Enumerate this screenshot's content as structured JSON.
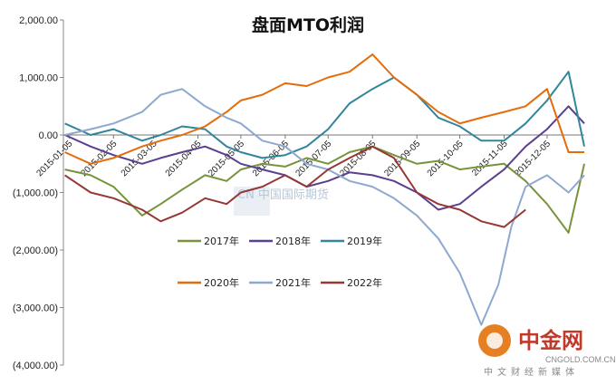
{
  "chart_data": {
    "type": "line",
    "title": "盘面MTO利润",
    "ylim": [
      -4000,
      2000
    ],
    "yticks": [
      2000,
      1000,
      0,
      -1000,
      -2000,
      -3000,
      -4000
    ],
    "ytick_labels": [
      "2,000.00",
      "1,000.00",
      "0.00",
      "(1,000.00)",
      "(2,000.00)",
      "(3,000.00)",
      "(4,000.00)"
    ],
    "x_range": [
      "2015-01-01",
      "2015-12-31"
    ],
    "x_tick_dates": [
      "2015-01-05",
      "2015-02-05",
      "2015-03-05",
      "2015-04-05",
      "2015-05-05",
      "2015-06-05",
      "2015-07-05",
      "2015-08-05",
      "2015-09-05",
      "2015-10-05",
      "2015-11-05",
      "2015-12-05"
    ],
    "x_tick_labels": [
      "2015-01-05",
      "2015-02-05",
      "2015-03-05",
      "2015-04-05",
      "2015-05-05",
      "2015-06-05",
      "2015-07-05",
      "2015-08-05",
      "2015-09-05",
      "2015-10-05",
      "2015-11-05",
      "2015-12-05"
    ],
    "legend_placement": "center",
    "grid": false,
    "series": [
      {
        "name": "2017年",
        "color": "#77933c",
        "x": [
          "2015-01-02",
          "2015-01-20",
          "2015-02-05",
          "2015-02-25",
          "2015-03-10",
          "2015-03-25",
          "2015-04-10",
          "2015-04-25",
          "2015-05-05",
          "2015-05-20",
          "2015-06-05",
          "2015-06-20",
          "2015-07-05",
          "2015-07-20",
          "2015-08-05",
          "2015-08-20",
          "2015-09-05",
          "2015-09-20",
          "2015-10-05",
          "2015-10-20",
          "2015-11-05",
          "2015-11-20",
          "2015-12-05",
          "2015-12-20",
          "2015-12-31"
        ],
        "values": [
          -600,
          -700,
          -900,
          -1400,
          -1200,
          -950,
          -700,
          -800,
          -600,
          -500,
          -550,
          -400,
          -500,
          -300,
          -200,
          -350,
          -500,
          -450,
          -600,
          -550,
          -500,
          -800,
          -1200,
          -1700,
          -500
        ]
      },
      {
        "name": "2018年",
        "color": "#5c3f8f",
        "x": [
          "2015-01-02",
          "2015-01-20",
          "2015-02-05",
          "2015-02-25",
          "2015-03-10",
          "2015-03-25",
          "2015-04-10",
          "2015-04-25",
          "2015-05-05",
          "2015-05-20",
          "2015-06-05",
          "2015-06-20",
          "2015-07-05",
          "2015-07-20",
          "2015-08-05",
          "2015-08-20",
          "2015-09-05",
          "2015-09-20",
          "2015-10-05",
          "2015-10-20",
          "2015-11-05",
          "2015-11-20",
          "2015-12-05",
          "2015-12-20",
          "2015-12-31"
        ],
        "values": [
          0,
          -200,
          -350,
          -500,
          -400,
          -300,
          -200,
          -350,
          -500,
          -600,
          -700,
          -900,
          -800,
          -650,
          -700,
          -800,
          -1000,
          -1300,
          -1200,
          -900,
          -600,
          -200,
          100,
          500,
          200
        ]
      },
      {
        "name": "2019年",
        "color": "#31859c",
        "x": [
          "2015-01-02",
          "2015-01-20",
          "2015-02-05",
          "2015-02-25",
          "2015-03-10",
          "2015-03-25",
          "2015-04-10",
          "2015-04-25",
          "2015-05-05",
          "2015-05-20",
          "2015-06-05",
          "2015-06-20",
          "2015-07-05",
          "2015-07-20",
          "2015-08-05",
          "2015-08-20",
          "2015-09-05",
          "2015-09-20",
          "2015-10-05",
          "2015-10-20",
          "2015-11-05",
          "2015-11-20",
          "2015-12-05",
          "2015-12-20",
          "2015-12-31"
        ],
        "values": [
          200,
          0,
          100,
          -100,
          0,
          150,
          100,
          -200,
          -300,
          -400,
          -350,
          -200,
          100,
          550,
          800,
          1000,
          700,
          300,
          150,
          -100,
          -100,
          200,
          600,
          1100,
          -200
        ]
      },
      {
        "name": "2020年",
        "color": "#e46c0a",
        "x": [
          "2015-01-02",
          "2015-01-20",
          "2015-02-05",
          "2015-02-25",
          "2015-03-10",
          "2015-03-25",
          "2015-04-10",
          "2015-04-25",
          "2015-05-05",
          "2015-05-20",
          "2015-06-05",
          "2015-06-20",
          "2015-07-05",
          "2015-07-20",
          "2015-08-05",
          "2015-08-20",
          "2015-09-05",
          "2015-09-20",
          "2015-10-05",
          "2015-10-20",
          "2015-11-05",
          "2015-11-20",
          "2015-12-05",
          "2015-12-20",
          "2015-12-31"
        ],
        "values": [
          -300,
          -500,
          -400,
          -200,
          -100,
          0,
          150,
          400,
          600,
          700,
          900,
          850,
          1000,
          1100,
          1400,
          1000,
          700,
          400,
          200,
          300,
          400,
          500,
          800,
          -300,
          -300
        ]
      },
      {
        "name": "2021年",
        "color": "#8ea9cf",
        "x": [
          "2015-01-02",
          "2015-01-20",
          "2015-02-05",
          "2015-02-25",
          "2015-03-10",
          "2015-03-25",
          "2015-04-10",
          "2015-04-25",
          "2015-05-05",
          "2015-05-20",
          "2015-06-05",
          "2015-06-20",
          "2015-07-05",
          "2015-07-20",
          "2015-08-05",
          "2015-08-20",
          "2015-09-05",
          "2015-09-20",
          "2015-10-05",
          "2015-10-20",
          "2015-11-01",
          "2015-11-10",
          "2015-11-20",
          "2015-12-05",
          "2015-12-20",
          "2015-12-31"
        ],
        "values": [
          0,
          100,
          200,
          400,
          700,
          800,
          500,
          300,
          200,
          -100,
          -200,
          -500,
          -600,
          -800,
          -900,
          -1100,
          -1400,
          -1800,
          -2400,
          -3300,
          -2600,
          -1600,
          -900,
          -700,
          -1000,
          -700
        ]
      },
      {
        "name": "2022年",
        "color": "#953735",
        "x": [
          "2015-01-02",
          "2015-01-20",
          "2015-02-05",
          "2015-02-25",
          "2015-03-10",
          "2015-03-25",
          "2015-04-10",
          "2015-04-25",
          "2015-05-05",
          "2015-05-20",
          "2015-06-05",
          "2015-06-20",
          "2015-07-05",
          "2015-07-20",
          "2015-08-05",
          "2015-08-20",
          "2015-09-05",
          "2015-09-20",
          "2015-10-05",
          "2015-10-20",
          "2015-11-05",
          "2015-11-20"
        ],
        "values": [
          -700,
          -1000,
          -1100,
          -1300,
          -1500,
          -1350,
          -1100,
          -1200,
          -1000,
          -900,
          -700,
          -900,
          -600,
          -400,
          -200,
          -400,
          -1000,
          -1200,
          -1300,
          -1500,
          -1600,
          -1300
        ]
      }
    ]
  },
  "watermark": "CN 中国国际期货",
  "logo": {
    "name": "中金网",
    "url": "CNGOLD.COM.CN",
    "tagline": "中文财经新媒体",
    "color": "#c0392b"
  }
}
